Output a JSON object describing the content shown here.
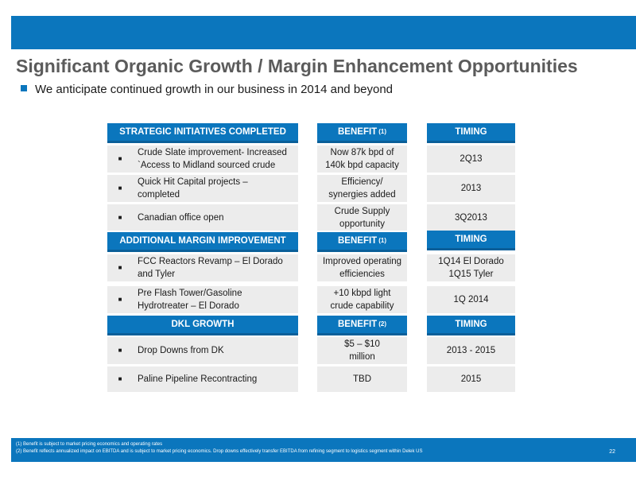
{
  "title": "Significant Organic Growth / Margin Enhancement Opportunities",
  "subtitle": "We anticipate continued growth in our business in 2014 and beyond",
  "sections": [
    {
      "header": "STRATEGIC INITIATIVES COMPLETED",
      "benefit_header": "BENEFIT",
      "benefit_sup": "(1)",
      "timing_header": "TIMING",
      "rows": [
        {
          "initiative": "Crude Slate improvement- Increased\n`Access to Midland sourced crude",
          "benefit": "Now 87k bpd of\n140k bpd capacity",
          "timing": "2Q13"
        },
        {
          "initiative": "Quick Hit Capital projects –\ncompleted",
          "benefit": "Efficiency/\nsynergies added",
          "timing": "2013"
        },
        {
          "initiative": "Canadian office open",
          "benefit": "Crude Supply\nopportunity",
          "timing": "3Q2013"
        }
      ]
    },
    {
      "header": "ADDITIONAL MARGIN IMPROVEMENT",
      "benefit_header": "BENEFIT",
      "benefit_sup": "(1)",
      "timing_header": "TIMING",
      "rows": [
        {
          "initiative": "FCC Reactors Revamp – El Dorado\nand Tyler",
          "benefit": "Improved operating\nefficiencies",
          "timing": "1Q14 El Dorado\n1Q15 Tyler"
        },
        {
          "initiative": "Pre Flash Tower/Gasoline\nHydrotreater –  El Dorado",
          "benefit": "+10 kbpd light\ncrude capability",
          "timing": "1Q 2014"
        }
      ]
    },
    {
      "header": "DKL GROWTH",
      "benefit_header": "BENEFIT",
      "benefit_sup": "(2)",
      "timing_header": "TIMING",
      "rows": [
        {
          "initiative": "Drop Downs from DK",
          "benefit": "$5 – $10\nmillion",
          "timing": "2013 - 2015"
        },
        {
          "initiative": "Paline Pipeline Recontracting",
          "benefit": "TBD",
          "timing": "2015"
        }
      ]
    }
  ],
  "bullet_glyph": "■",
  "footnotes": [
    "(1)      Benefit is subject to market pricing economics and operating rates",
    "(2)      Benefit reflects annualized impact on EBITDA and is subject to market pricing economics. Drop downs effectively transfer EBITDA from refining segment to logistics segment within Delek US"
  ],
  "page_number": "22",
  "colors": {
    "accent": "#0b76bd",
    "cell_bg": "#ececec",
    "title": "#5b5b5b"
  }
}
